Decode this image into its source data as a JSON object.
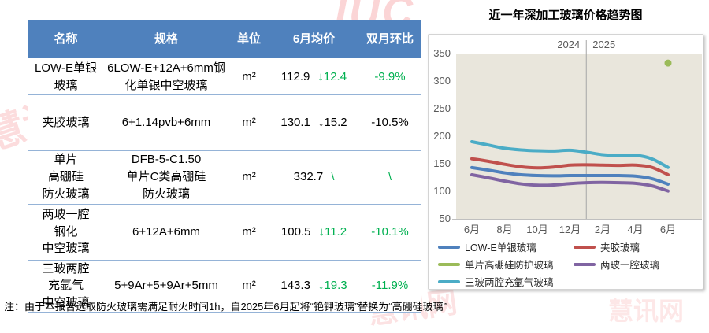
{
  "watermark": {
    "top": "IUC",
    "left": "慧讯网",
    "bottom_left": "慧讯网",
    "bottom_right": "慧讯网"
  },
  "table": {
    "headers": {
      "name": "名称",
      "spec": "规格",
      "unit": "单位",
      "price": "6月均价",
      "mom": "双月环比"
    },
    "rows": [
      {
        "name": "LOW-E单银\n玻璃",
        "spec": "6LOW-E+12A+6mm钢\n化单银中空玻璃",
        "unit": "m²",
        "price": "112.9",
        "change": "↓12.4",
        "mom": "-9.9%"
      },
      {
        "name": "夹胶玻璃",
        "spec": "6+1.14pvb+6mm",
        "unit": "m²",
        "price": "130.1",
        "change": "↓15.2",
        "mom": "-10.5%"
      },
      {
        "name": "单片\n高硼硅\n防火玻璃",
        "spec": "DFB-5-C1.50\n单片C类高硼硅\n防火玻璃",
        "unit": "m²",
        "price": "332.7",
        "change": "\\",
        "mom": "\\"
      },
      {
        "name": "两玻一腔\n钢化\n中空玻璃",
        "spec": "6+12A+6mm",
        "unit": "m²",
        "price": "100.5",
        "change": "↓11.2",
        "mom": "-10.1%"
      },
      {
        "name": "三玻两腔\n充氩气\n中空玻璃",
        "spec": "5+9Ar+5+9Ar+5mm",
        "unit": "m²",
        "price": "143.3",
        "change": "↓19.3",
        "mom": "-11.9%"
      }
    ],
    "note": "注：由于本报告选取防火玻璃需满足耐火时间1h，自2025年6月起将“铯钾玻璃”替换为“高硼硅玻璃”"
  },
  "chart_data": {
    "type": "line",
    "title": "近一年深加工玻璃价格趋势图",
    "x_months": [
      "2024-06",
      "2024-07",
      "2024-08",
      "2024-09",
      "2024-10",
      "2024-11",
      "2024-12",
      "2025-01",
      "2025-02",
      "2025-03",
      "2025-04",
      "2025-05",
      "2025-06"
    ],
    "x_tick_labels": [
      "6月",
      "8月",
      "10月",
      "12月",
      "2月",
      "4月",
      "6月"
    ],
    "y_ticks": [
      350,
      300,
      250,
      200,
      150,
      100,
      50
    ],
    "ylim": [
      50,
      350
    ],
    "year_divider": {
      "left": "2024",
      "right": "2025"
    },
    "plot_bg": "#e9e6dc",
    "grid": false,
    "legend_position": "bottom",
    "series": [
      {
        "name": "LOW-E单银玻璃",
        "color": "#4f81bd",
        "values": [
          143,
          138.5,
          133.5,
          130,
          128.5,
          128,
          128.5,
          128.5,
          128.5,
          128.5,
          127.5,
          123,
          112.9
        ]
      },
      {
        "name": "夹胶玻璃",
        "color": "#c0504d",
        "values": [
          159,
          154.5,
          149,
          144.5,
          142.5,
          144,
          147.5,
          148,
          147.5,
          147,
          147.5,
          143.5,
          130.1
        ]
      },
      {
        "name": "单片高硼硅防护玻璃",
        "color": "#9bbb59",
        "style": "point",
        "values": [
          null,
          null,
          null,
          null,
          null,
          null,
          null,
          null,
          null,
          null,
          null,
          null,
          332.7
        ]
      },
      {
        "name": "两玻一腔玻璃",
        "color": "#8064a2",
        "values": [
          130,
          124.5,
          118.5,
          113.5,
          111,
          111.5,
          114,
          115.5,
          116,
          115.5,
          114.5,
          110,
          100.5
        ]
      },
      {
        "name": "三玻两腔充氩气玻璃",
        "color": "#4bacc6",
        "values": [
          190,
          184,
          178,
          175,
          173.5,
          173,
          174.5,
          171,
          166.5,
          165,
          165.5,
          159,
          143.3
        ]
      }
    ]
  },
  "colors": {
    "header_bg": "#4f81bd",
    "table_border": "#95b3d7",
    "positive_green": "#00b050"
  }
}
